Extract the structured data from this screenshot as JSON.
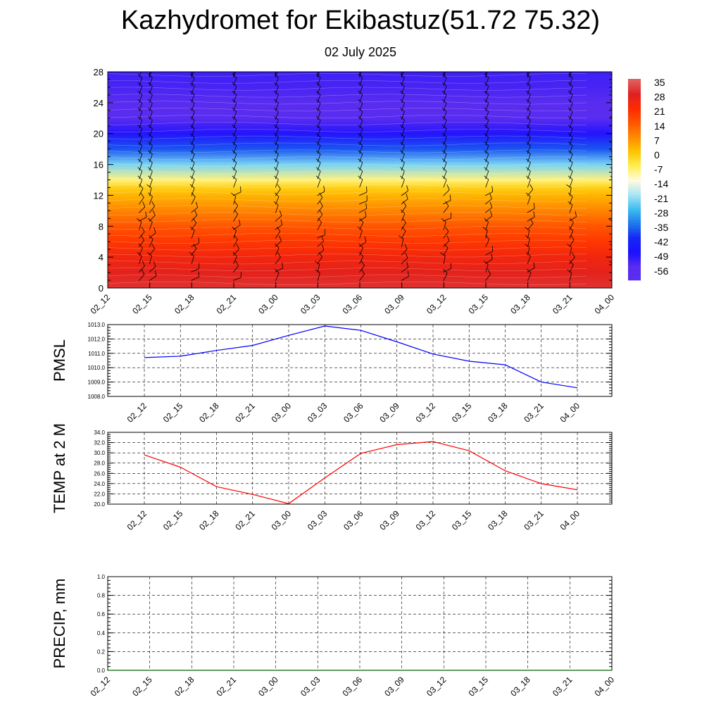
{
  "title": "Kazhydromet for Ekibastuz(51.72 75.32)",
  "subtitle": "02 July 2025",
  "time_labels": [
    "02_12",
    "02_15",
    "02_18",
    "02_21",
    "03_00",
    "03_03",
    "03_06",
    "03_09",
    "03_12",
    "03_15",
    "03_18",
    "03_21",
    "04_00"
  ],
  "colors": {
    "pmsl_line": "#0000ff",
    "temp_line": "#ff0000",
    "precip_line": "#006400",
    "grid": "#000000"
  },
  "chart_data": [
    {
      "type": "heatmap",
      "title": "",
      "xlabel": "",
      "ylabel": "",
      "x": [
        "02_12",
        "02_15",
        "02_18",
        "02_21",
        "03_00",
        "03_03",
        "03_06",
        "03_09",
        "03_12",
        "03_15",
        "03_18",
        "03_21",
        "04_00"
      ],
      "ylim": [
        0,
        28
      ],
      "yticks": [
        0,
        4,
        8,
        12,
        16,
        20,
        24,
        28
      ],
      "levels": [
        0,
        2,
        4,
        6,
        8,
        10,
        12,
        13,
        14,
        16,
        18,
        20,
        22,
        24,
        26,
        28
      ],
      "temperature_profile": [
        30,
        27,
        24,
        19,
        14,
        8,
        2,
        -2,
        -9,
        -24,
        -38,
        -50,
        -57,
        -56,
        -54,
        -53
      ],
      "colorbar_labels": [
        "35",
        "28",
        "21",
        "14",
        "7",
        "0",
        "-7",
        "-14",
        "-21",
        "-28",
        "-35",
        "-42",
        "-49",
        "-56"
      ],
      "colorbar_colors": [
        "#e06060",
        "#e02020",
        "#ff2b00",
        "#ff5500",
        "#ff8c00",
        "#ffc400",
        "#ffef55",
        "#fffbe0",
        "#a6e4f5",
        "#3cbcf0",
        "#1e78ee",
        "#1427f5",
        "#1a10ff",
        "#5a2cf0"
      ],
      "grid": false,
      "wind_barbs": true
    },
    {
      "type": "line",
      "title": "",
      "xlabel": "",
      "ylabel": "PMSL",
      "x": [
        "02_12",
        "02_15",
        "02_18",
        "02_21",
        "03_00",
        "03_03",
        "03_06",
        "03_09",
        "03_12",
        "03_15",
        "03_18",
        "03_21",
        "04_00"
      ],
      "series": [
        {
          "values": [
            1010.7,
            1010.8,
            1011.2,
            1011.55,
            1012.25,
            1012.9,
            1012.6,
            1011.8,
            1010.95,
            1010.45,
            1010.2,
            1009.0,
            1008.6
          ]
        }
      ],
      "ylim": [
        1008.0,
        1013.0
      ],
      "yticks": [
        "1008.0",
        "1009.0",
        "1010.0",
        "1011.0",
        "1012.0",
        "1013.0"
      ],
      "grid": true
    },
    {
      "type": "line",
      "title": "",
      "xlabel": "",
      "ylabel": "TEMP at 2 M",
      "x": [
        "02_12",
        "02_15",
        "02_18",
        "02_21",
        "03_00",
        "03_03",
        "03_06",
        "03_09",
        "03_12",
        "03_15",
        "03_18",
        "03_21",
        "04_00"
      ],
      "series": [
        {
          "values": [
            29.6,
            27.2,
            23.4,
            21.9,
            20.1,
            25.1,
            29.9,
            31.6,
            32.2,
            30.4,
            26.5,
            24.0,
            22.8
          ]
        }
      ],
      "ylim": [
        20.0,
        34.0
      ],
      "yticks": [
        "20.0",
        "22.0",
        "24.0",
        "26.0",
        "28.0",
        "30.0",
        "32.0",
        "34.0"
      ],
      "grid": true
    },
    {
      "type": "line",
      "title": "",
      "xlabel": "",
      "ylabel": "PRECIP, mm",
      "x": [
        "02_12",
        "02_15",
        "02_18",
        "02_21",
        "03_00",
        "03_03",
        "03_06",
        "03_09",
        "03_12",
        "03_15",
        "03_18",
        "03_21",
        "04_00"
      ],
      "series": [
        {
          "values": [
            0,
            0,
            0,
            0,
            0,
            0,
            0,
            0,
            0,
            0,
            0,
            0,
            0
          ]
        }
      ],
      "ylim": [
        0.0,
        1.0
      ],
      "yticks": [
        "0.0",
        "0.2",
        "0.4",
        "0.6",
        "0.8",
        "1.0"
      ],
      "grid": true
    }
  ]
}
